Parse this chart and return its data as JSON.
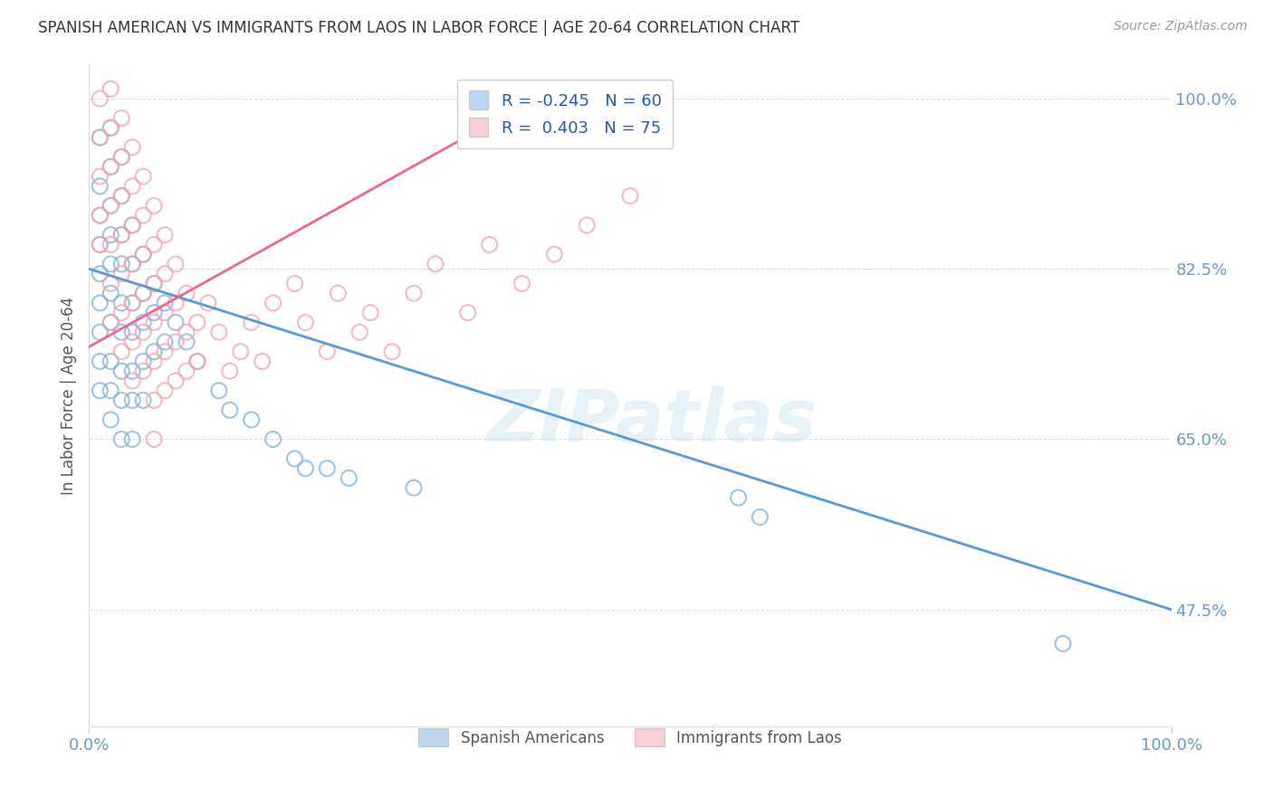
{
  "title": "SPANISH AMERICAN VS IMMIGRANTS FROM LAOS IN LABOR FORCE | AGE 20-64 CORRELATION CHART",
  "source": "Source: ZipAtlas.com",
  "ylabel": "In Labor Force | Age 20-64",
  "xlim": [
    0.0,
    1.0
  ],
  "ylim": [
    0.355,
    1.035
  ],
  "yticks": [
    0.475,
    0.65,
    0.825,
    1.0
  ],
  "ytick_labels": [
    "47.5%",
    "65.0%",
    "82.5%",
    "100.0%"
  ],
  "xtick_labels": [
    "0.0%",
    "100.0%"
  ],
  "watermark": "ZIPatlas",
  "legend_r1": "R = -0.245",
  "legend_n1": "N = 60",
  "legend_r2": "R =  0.403",
  "legend_n2": "N = 75",
  "blue_color": "#7ab0e0",
  "pink_color": "#f4a0b0",
  "blue_line_color": "#5599dd",
  "pink_line_color": "#ee6688",
  "tick_color": "#6699cc",
  "blue_scatter": [
    [
      0.01,
      0.96
    ],
    [
      0.01,
      0.91
    ],
    [
      0.01,
      0.88
    ],
    [
      0.01,
      0.85
    ],
    [
      0.01,
      0.82
    ],
    [
      0.01,
      0.79
    ],
    [
      0.01,
      0.76
    ],
    [
      0.01,
      0.73
    ],
    [
      0.01,
      0.7
    ],
    [
      0.02,
      0.97
    ],
    [
      0.02,
      0.93
    ],
    [
      0.02,
      0.89
    ],
    [
      0.02,
      0.86
    ],
    [
      0.02,
      0.83
    ],
    [
      0.02,
      0.8
    ],
    [
      0.02,
      0.77
    ],
    [
      0.02,
      0.73
    ],
    [
      0.02,
      0.7
    ],
    [
      0.02,
      0.67
    ],
    [
      0.03,
      0.94
    ],
    [
      0.03,
      0.9
    ],
    [
      0.03,
      0.86
    ],
    [
      0.03,
      0.83
    ],
    [
      0.03,
      0.79
    ],
    [
      0.03,
      0.76
    ],
    [
      0.03,
      0.72
    ],
    [
      0.03,
      0.69
    ],
    [
      0.03,
      0.65
    ],
    [
      0.04,
      0.87
    ],
    [
      0.04,
      0.83
    ],
    [
      0.04,
      0.79
    ],
    [
      0.04,
      0.76
    ],
    [
      0.04,
      0.72
    ],
    [
      0.04,
      0.69
    ],
    [
      0.04,
      0.65
    ],
    [
      0.05,
      0.84
    ],
    [
      0.05,
      0.8
    ],
    [
      0.05,
      0.77
    ],
    [
      0.05,
      0.73
    ],
    [
      0.05,
      0.69
    ],
    [
      0.06,
      0.81
    ],
    [
      0.06,
      0.78
    ],
    [
      0.06,
      0.74
    ],
    [
      0.07,
      0.79
    ],
    [
      0.07,
      0.75
    ],
    [
      0.08,
      0.77
    ],
    [
      0.09,
      0.75
    ],
    [
      0.1,
      0.73
    ],
    [
      0.12,
      0.7
    ],
    [
      0.13,
      0.68
    ],
    [
      0.15,
      0.67
    ],
    [
      0.17,
      0.65
    ],
    [
      0.19,
      0.63
    ],
    [
      0.2,
      0.62
    ],
    [
      0.22,
      0.62
    ],
    [
      0.24,
      0.61
    ],
    [
      0.3,
      0.6
    ],
    [
      0.6,
      0.59
    ],
    [
      0.62,
      0.57
    ],
    [
      0.9,
      0.44
    ]
  ],
  "pink_scatter": [
    [
      0.01,
      1.0
    ],
    [
      0.01,
      0.96
    ],
    [
      0.01,
      0.92
    ],
    [
      0.01,
      0.88
    ],
    [
      0.01,
      0.85
    ],
    [
      0.02,
      1.01
    ],
    [
      0.02,
      0.97
    ],
    [
      0.02,
      0.93
    ],
    [
      0.02,
      0.89
    ],
    [
      0.02,
      0.85
    ],
    [
      0.02,
      0.81
    ],
    [
      0.02,
      0.77
    ],
    [
      0.03,
      0.98
    ],
    [
      0.03,
      0.94
    ],
    [
      0.03,
      0.9
    ],
    [
      0.03,
      0.86
    ],
    [
      0.03,
      0.82
    ],
    [
      0.03,
      0.78
    ],
    [
      0.03,
      0.74
    ],
    [
      0.04,
      0.95
    ],
    [
      0.04,
      0.91
    ],
    [
      0.04,
      0.87
    ],
    [
      0.04,
      0.83
    ],
    [
      0.04,
      0.79
    ],
    [
      0.04,
      0.75
    ],
    [
      0.04,
      0.71
    ],
    [
      0.05,
      0.92
    ],
    [
      0.05,
      0.88
    ],
    [
      0.05,
      0.84
    ],
    [
      0.05,
      0.8
    ],
    [
      0.05,
      0.76
    ],
    [
      0.05,
      0.72
    ],
    [
      0.06,
      0.89
    ],
    [
      0.06,
      0.85
    ],
    [
      0.06,
      0.81
    ],
    [
      0.06,
      0.77
    ],
    [
      0.06,
      0.73
    ],
    [
      0.06,
      0.69
    ],
    [
      0.06,
      0.65
    ],
    [
      0.07,
      0.86
    ],
    [
      0.07,
      0.82
    ],
    [
      0.07,
      0.78
    ],
    [
      0.07,
      0.74
    ],
    [
      0.07,
      0.7
    ],
    [
      0.08,
      0.83
    ],
    [
      0.08,
      0.79
    ],
    [
      0.08,
      0.75
    ],
    [
      0.08,
      0.71
    ],
    [
      0.09,
      0.8
    ],
    [
      0.09,
      0.76
    ],
    [
      0.09,
      0.72
    ],
    [
      0.1,
      0.77
    ],
    [
      0.1,
      0.73
    ],
    [
      0.11,
      0.79
    ],
    [
      0.12,
      0.76
    ],
    [
      0.13,
      0.72
    ],
    [
      0.14,
      0.74
    ],
    [
      0.15,
      0.77
    ],
    [
      0.16,
      0.73
    ],
    [
      0.17,
      0.79
    ],
    [
      0.19,
      0.81
    ],
    [
      0.2,
      0.77
    ],
    [
      0.22,
      0.74
    ],
    [
      0.23,
      0.8
    ],
    [
      0.25,
      0.76
    ],
    [
      0.26,
      0.78
    ],
    [
      0.28,
      0.74
    ],
    [
      0.3,
      0.8
    ],
    [
      0.32,
      0.83
    ],
    [
      0.35,
      0.78
    ],
    [
      0.37,
      0.85
    ],
    [
      0.4,
      0.81
    ],
    [
      0.43,
      0.84
    ],
    [
      0.46,
      0.87
    ],
    [
      0.5,
      0.9
    ]
  ],
  "blue_trendline": [
    [
      0.0,
      0.825
    ],
    [
      1.0,
      0.475
    ]
  ],
  "pink_trendline": [
    [
      0.0,
      0.745
    ],
    [
      0.42,
      1.005
    ]
  ]
}
